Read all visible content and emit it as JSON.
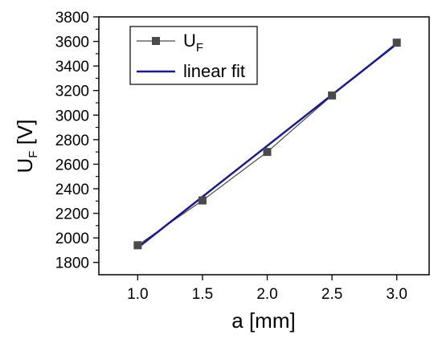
{
  "chart_data": {
    "type": "line",
    "xlabel": "a [mm]",
    "ylabel": "U",
    "ylabel_subscript": "F",
    "ylabel_unit": " [V]",
    "xlim": [
      0.7,
      3.25
    ],
    "ylim": [
      1700,
      3800
    ],
    "x_ticks": [
      1.0,
      1.5,
      2.0,
      2.5,
      3.0
    ],
    "x_tick_labels": [
      "1.0",
      "1.5",
      "2.0",
      "2.5",
      "3.0"
    ],
    "y_ticks": [
      1800,
      2000,
      2200,
      2400,
      2600,
      2800,
      3000,
      3200,
      3400,
      3600,
      3800
    ],
    "y_tick_labels": [
      "1800",
      "2000",
      "2200",
      "2400",
      "2600",
      "2800",
      "3000",
      "3200",
      "3400",
      "3600",
      "3800"
    ],
    "grid": false,
    "legend_position": "top-left",
    "series": [
      {
        "name": "U",
        "name_subscript": "F",
        "x": [
          1.0,
          1.5,
          2.0,
          2.5,
          3.0
        ],
        "values": [
          1940,
          2305,
          2700,
          3160,
          3590
        ],
        "color": "#4a4a4a",
        "marker": "square"
      },
      {
        "name": "linear fit",
        "x": [
          1.0,
          3.0
        ],
        "values": [
          1920,
          3580
        ],
        "color": "#1a1a8c"
      }
    ]
  }
}
